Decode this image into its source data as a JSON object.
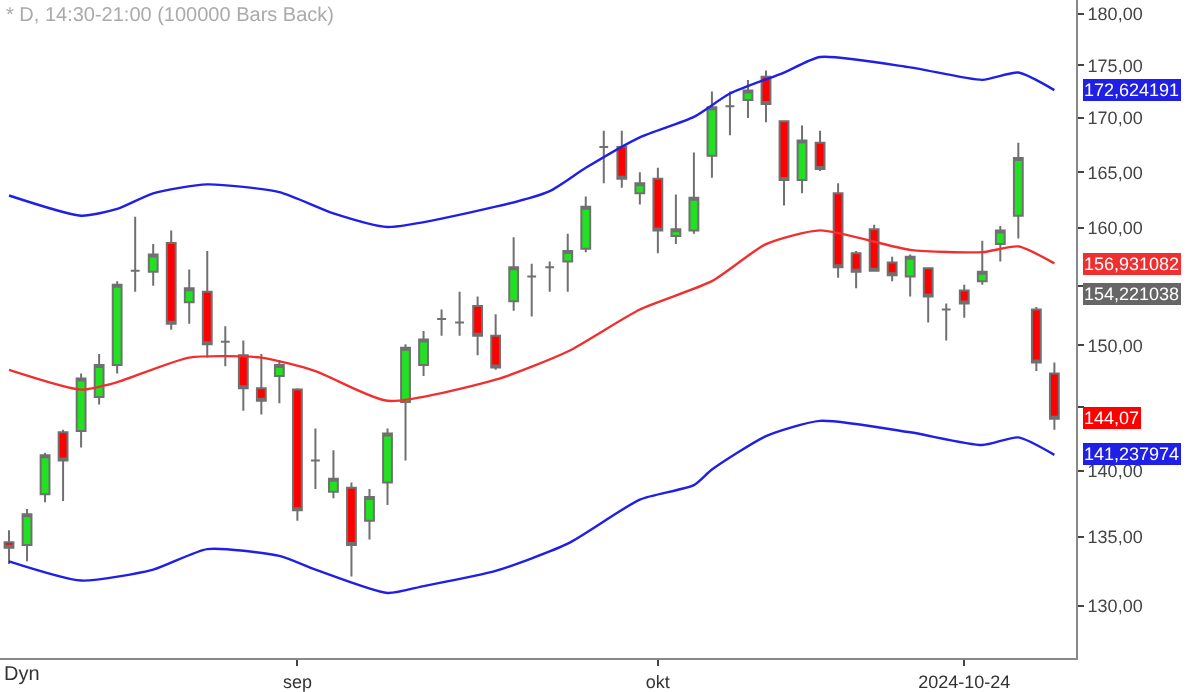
{
  "chart_data": {
    "type": "candlestick",
    "title": "* D, 14:30-21:00 (100000 Bars Back)",
    "categories": [
      null,
      null,
      null,
      null,
      null,
      null,
      null,
      null,
      null,
      null,
      null,
      null,
      null,
      null,
      null,
      null,
      "sep",
      null,
      null,
      null,
      null,
      null,
      null,
      null,
      null,
      null,
      null,
      null,
      null,
      null,
      null,
      null,
      null,
      null,
      null,
      null,
      "okt",
      null,
      null,
      null,
      null,
      null,
      null,
      null,
      null,
      null,
      null,
      null,
      null,
      null,
      null,
      null,
      null,
      "2024-10-24",
      null,
      null,
      null,
      null,
      null
    ],
    "ohlc": [
      [
        134.6,
        135.5,
        133.0,
        134.2
      ],
      [
        134.4,
        137.1,
        133.2,
        136.7
      ],
      [
        138.2,
        141.4,
        137.6,
        141.2
      ],
      [
        143.0,
        143.2,
        137.7,
        140.8
      ],
      [
        143.1,
        147.7,
        141.8,
        147.3
      ],
      [
        145.8,
        149.3,
        145.2,
        148.4
      ],
      [
        148.4,
        155.4,
        147.7,
        155.1
      ],
      [
        156.3,
        161.0,
        154.5,
        156.3
      ],
      [
        156.2,
        158.6,
        155.0,
        157.7
      ],
      [
        158.7,
        159.8,
        151.3,
        151.8
      ],
      [
        153.6,
        156.4,
        151.8,
        154.8
      ],
      [
        154.5,
        158.0,
        149.0,
        150.1
      ],
      [
        150.3,
        151.6,
        148.3,
        150.3
      ],
      [
        149.2,
        150.4,
        144.7,
        146.5
      ],
      [
        146.5,
        149.3,
        144.4,
        145.5
      ],
      [
        147.5,
        148.8,
        145.3,
        148.4
      ],
      [
        146.4,
        146.5,
        136.2,
        137.0
      ],
      [
        140.8,
        143.3,
        138.6,
        140.8
      ],
      [
        138.4,
        141.6,
        137.9,
        139.4
      ],
      [
        138.7,
        139.1,
        132.1,
        134.4
      ],
      [
        136.2,
        138.6,
        134.8,
        138.0
      ],
      [
        139.1,
        143.3,
        137.4,
        142.9
      ],
      [
        145.4,
        150.1,
        140.8,
        149.8
      ],
      [
        148.4,
        151.2,
        147.5,
        150.5
      ],
      [
        152.2,
        153.0,
        150.8,
        152.2
      ],
      [
        151.9,
        154.5,
        150.8,
        151.9
      ],
      [
        153.3,
        154.1,
        149.2,
        150.8
      ],
      [
        150.8,
        152.6,
        148.0,
        148.2
      ],
      [
        153.7,
        159.2,
        152.9,
        156.6
      ],
      [
        155.8,
        156.9,
        152.4,
        155.8
      ],
      [
        156.6,
        157.1,
        154.5,
        156.6
      ],
      [
        157.1,
        159.5,
        154.5,
        158.0
      ],
      [
        158.2,
        162.8,
        157.9,
        161.9
      ],
      [
        167.3,
        168.8,
        164.0,
        167.3
      ],
      [
        167.3,
        168.8,
        163.6,
        164.4
      ],
      [
        163.1,
        165.0,
        162.1,
        164.0
      ],
      [
        164.4,
        165.4,
        157.8,
        159.8
      ],
      [
        159.3,
        163.0,
        158.6,
        159.9
      ],
      [
        159.8,
        166.8,
        159.5,
        162.7
      ],
      [
        166.5,
        172.5,
        164.5,
        171.0
      ],
      [
        171.1,
        172.5,
        168.4,
        171.1
      ],
      [
        171.7,
        173.6,
        170.0,
        172.6
      ],
      [
        173.9,
        174.5,
        169.6,
        171.3
      ],
      [
        169.7,
        169.7,
        162.0,
        164.3
      ],
      [
        164.3,
        169.3,
        163.1,
        167.9
      ],
      [
        167.7,
        168.8,
        165.1,
        165.3
      ],
      [
        163.1,
        164.0,
        155.7,
        156.6
      ],
      [
        157.8,
        158.0,
        154.8,
        156.2
      ],
      [
        159.9,
        160.3,
        156.2,
        156.3
      ],
      [
        157.0,
        157.5,
        155.4,
        155.9
      ],
      [
        155.8,
        157.7,
        154.1,
        157.5
      ],
      [
        156.5,
        156.6,
        151.9,
        154.1
      ],
      [
        153.0,
        153.5,
        150.4,
        153.0
      ],
      [
        154.6,
        155.1,
        152.3,
        153.5
      ],
      [
        155.4,
        158.9,
        155.1,
        156.2
      ],
      [
        158.6,
        160.2,
        157.1,
        159.8
      ],
      [
        161.1,
        167.7,
        159.1,
        166.3
      ],
      [
        153.0,
        153.2,
        147.9,
        148.6
      ],
      [
        147.7,
        148.6,
        143.2,
        144.07
      ]
    ],
    "colors": [
      "#ff0000",
      "#22e022",
      "#22e022",
      "#ff0000",
      "#22e022",
      "#22e022",
      "#22e022",
      "#808080",
      "#22e022",
      "#ff0000",
      "#22e022",
      "#ff0000",
      "#808080",
      "#ff0000",
      "#ff0000",
      "#22e022",
      "#ff0000",
      "#808080",
      "#22e022",
      "#ff0000",
      "#22e022",
      "#22e022",
      "#22e022",
      "#22e022",
      "#808080",
      "#808080",
      "#ff0000",
      "#ff0000",
      "#22e022",
      "#808080",
      "#808080",
      "#22e022",
      "#22e022",
      "#808080",
      "#ff0000",
      "#22e022",
      "#ff0000",
      "#22e022",
      "#22e022",
      "#22e022",
      "#808080",
      "#22e022",
      "#ff0000",
      "#ff0000",
      "#22e022",
      "#ff0000",
      "#ff0000",
      "#ff0000",
      "#ff0000",
      "#ff0000",
      "#22e022",
      "#ff0000",
      "#808080",
      "#ff0000",
      "#22e022",
      "#22e022",
      "#22e022",
      "#ff0000",
      "#ff0000"
    ],
    "series": [
      {
        "type": "line",
        "color": "#1f1fe6",
        "values": [
          162.9,
          null,
          null,
          null,
          161.1,
          null,
          161.7,
          null,
          163.1,
          null,
          null,
          163.9,
          null,
          null,
          null,
          163.2,
          null,
          null,
          161.3,
          null,
          null,
          160.1,
          null,
          null,
          null,
          null,
          null,
          161.9,
          null,
          null,
          163.3,
          null,
          165.4,
          null,
          null,
          168.2,
          null,
          null,
          170.1,
          null,
          172.3,
          null,
          null,
          174.3,
          null,
          175.8,
          null,
          null,
          null,
          null,
          174.8,
          null,
          null,
          null,
          173.6,
          null,
          174.3,
          null,
          172.624191
        ],
        "value_labels": [
          null,
          null,
          null,
          null,
          null,
          null,
          null,
          null,
          null,
          null,
          null,
          null,
          null,
          null,
          null,
          null,
          null,
          null,
          null,
          null,
          null,
          null,
          null,
          null,
          null,
          null,
          null,
          null,
          null,
          null,
          null,
          null,
          null,
          null,
          null,
          null,
          null,
          null,
          null,
          null,
          null,
          null,
          null,
          null,
          null,
          null,
          null,
          null,
          null,
          null,
          null,
          null,
          null,
          null,
          null,
          null,
          null,
          null,
          "172,624191"
        ]
      },
      {
        "type": "line",
        "color": "#f03030",
        "values": [
          148.0,
          null,
          null,
          null,
          146.4,
          null,
          147.0,
          null,
          null,
          null,
          149.0,
          null,
          null,
          null,
          149.0,
          null,
          null,
          147.9,
          null,
          null,
          null,
          145.5,
          null,
          null,
          null,
          null,
          null,
          147.2,
          null,
          null,
          null,
          149.5,
          null,
          null,
          null,
          153.0,
          null,
          null,
          null,
          155.4,
          null,
          null,
          158.6,
          null,
          null,
          159.8,
          null,
          null,
          null,
          null,
          158.1,
          null,
          null,
          null,
          157.9,
          null,
          158.4,
          null,
          156.931082
        ],
        "value_labels": [
          null,
          null,
          null,
          null,
          null,
          null,
          null,
          null,
          null,
          null,
          null,
          null,
          null,
          null,
          null,
          null,
          null,
          null,
          null,
          null,
          null,
          null,
          null,
          null,
          null,
          null,
          null,
          null,
          null,
          null,
          null,
          null,
          null,
          null,
          null,
          null,
          null,
          null,
          null,
          null,
          null,
          null,
          null,
          null,
          null,
          null,
          null,
          null,
          null,
          null,
          null,
          null,
          null,
          null,
          null,
          null,
          null,
          null,
          "156,931082"
        ]
      },
      {
        "type": "line",
        "color": "#1f1fe6",
        "values": [
          133.2,
          null,
          null,
          null,
          131.8,
          null,
          null,
          null,
          132.6,
          null,
          null,
          134.1,
          null,
          null,
          null,
          133.6,
          null,
          132.6,
          null,
          null,
          null,
          130.9,
          null,
          131.4,
          null,
          null,
          null,
          132.5,
          null,
          null,
          null,
          134.5,
          null,
          null,
          null,
          137.8,
          null,
          null,
          138.9,
          140.1,
          null,
          null,
          142.7,
          null,
          null,
          143.9,
          null,
          null,
          null,
          null,
          143.0,
          null,
          null,
          null,
          142.0,
          null,
          142.6,
          null,
          141.237974
        ],
        "value_labels": [
          null,
          null,
          null,
          null,
          null,
          null,
          null,
          null,
          null,
          null,
          null,
          null,
          null,
          null,
          null,
          null,
          null,
          null,
          null,
          null,
          null,
          null,
          null,
          null,
          null,
          null,
          null,
          null,
          null,
          null,
          null,
          null,
          null,
          null,
          null,
          null,
          null,
          null,
          null,
          null,
          null,
          null,
          null,
          null,
          null,
          null,
          null,
          null,
          null,
          null,
          null,
          null,
          null,
          null,
          null,
          null,
          null,
          null,
          "141,237974"
        ]
      }
    ],
    "log": true,
    "ylim": [
      126.3,
      181.4
    ],
    "yticks": [
      {
        "value": 130,
        "label": "130,00"
      },
      {
        "value": 135,
        "label": "135,00"
      },
      {
        "value": 140,
        "label": "140,00"
      },
      {
        "value": 145,
        "label": null
      },
      {
        "value": 150,
        "label": "150,00"
      },
      {
        "value": 155,
        "label": null
      },
      {
        "value": 160,
        "label": "160,00"
      },
      {
        "value": 165,
        "label": "165,00"
      },
      {
        "value": 170,
        "label": "170,00"
      },
      {
        "value": 175,
        "label": "175,00"
      },
      {
        "value": 180,
        "label": "180,00"
      }
    ],
    "value_labels": [
      null,
      null,
      null,
      null,
      null,
      null,
      null,
      null,
      null,
      null,
      null,
      null,
      null,
      null,
      null,
      null,
      null,
      null,
      null,
      null,
      null,
      null,
      null,
      null,
      null,
      null,
      null,
      null,
      null,
      null,
      null,
      null,
      null,
      null,
      null,
      null,
      null,
      null,
      null,
      null,
      null,
      null,
      null,
      null,
      null,
      null,
      null,
      null,
      null,
      null,
      null,
      null,
      null,
      null,
      null,
      null,
      null,
      null,
      "144,07"
    ],
    "annotations": [
      "154,221038",
      "Dyn"
    ]
  }
}
